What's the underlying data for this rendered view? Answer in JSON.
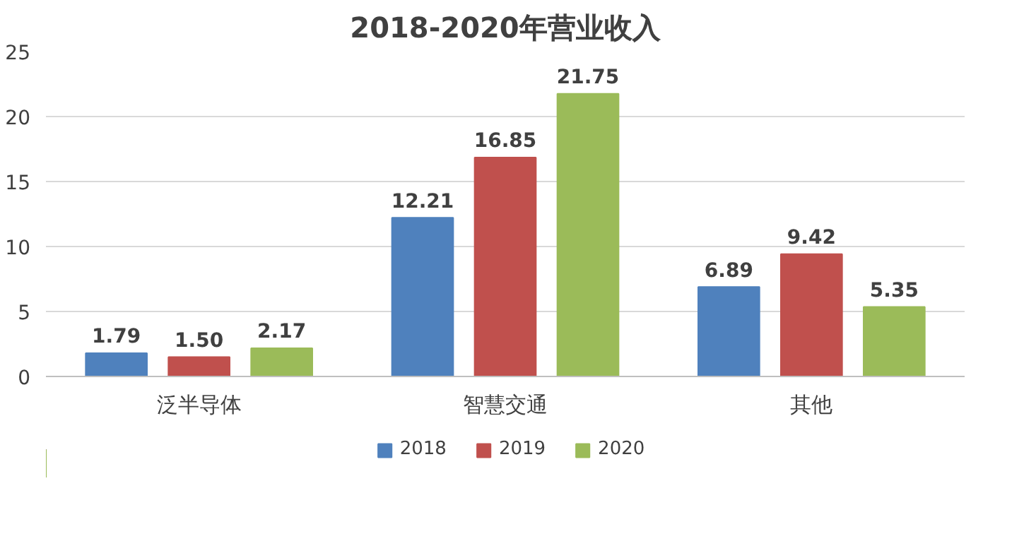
{
  "chart_data": {
    "type": "bar",
    "title": "2018-2020年营业收入",
    "categories": [
      "泛半导体",
      "智慧交通",
      "其他"
    ],
    "series": [
      {
        "name": "2018",
        "color": "#4f81bd",
        "values": [
          1.79,
          12.21,
          6.89
        ],
        "value_labels": [
          "1.79",
          "12.21",
          "6.89"
        ]
      },
      {
        "name": "2019",
        "color": "#c0504d",
        "values": [
          1.5,
          16.85,
          9.42
        ],
        "value_labels": [
          "1.50",
          "16.85",
          "9.42"
        ]
      },
      {
        "name": "2020",
        "color": "#9bbb59",
        "values": [
          2.17,
          21.75,
          5.35
        ],
        "value_labels": [
          "2.17",
          "21.75",
          "5.35"
        ]
      }
    ],
    "ylim": [
      0,
      25
    ],
    "yticks": [
      0,
      5,
      10,
      15,
      20,
      25
    ],
    "grid": "y",
    "legend": "bottom"
  }
}
